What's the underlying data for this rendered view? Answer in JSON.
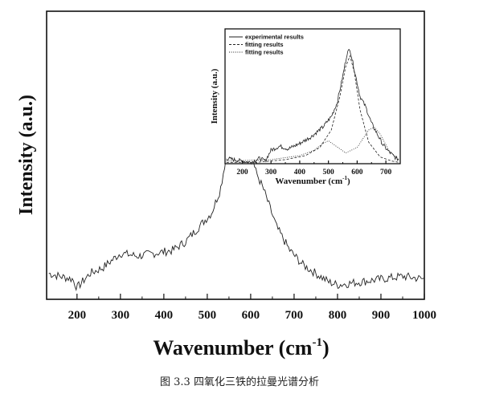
{
  "chart_data": [
    {
      "type": "line",
      "xlabel": "Wavenumber (cm",
      "xlabel_sup": "-1",
      "xlabel_close": ")",
      "ylabel": "Intensity (a.u.)",
      "xlim": [
        130,
        1000
      ],
      "ylim": [
        0,
        1
      ],
      "xticks": [
        200,
        300,
        400,
        500,
        600,
        700,
        800,
        900,
        1000
      ],
      "series": [
        {
          "x": [
            135,
            160,
            190,
            200,
            230,
            260,
            300,
            340,
            380,
            420,
            450,
            480,
            510,
            530,
            550,
            565,
            575,
            590,
            610,
            630,
            660,
            690,
            720,
            750,
            780,
            800,
            850,
            900,
            950,
            1000
          ],
          "y": [
            0.09,
            0.08,
            0.07,
            0.04,
            0.09,
            0.11,
            0.16,
            0.15,
            0.16,
            0.17,
            0.2,
            0.25,
            0.3,
            0.38,
            0.55,
            0.7,
            0.73,
            0.62,
            0.45,
            0.38,
            0.25,
            0.17,
            0.12,
            0.09,
            0.06,
            0.05,
            0.06,
            0.07,
            0.08,
            0.07
          ]
        }
      ]
    },
    {
      "type": "line",
      "xlabel": "Wavenumber (cm",
      "xlabel_sup": "-1",
      "xlabel_close": ")",
      "ylabel": "Intensity (a.u.)",
      "xlim": [
        140,
        750
      ],
      "ylim": [
        0,
        1
      ],
      "xticks": [
        200,
        300,
        400,
        500,
        600,
        700
      ],
      "series": [
        {
          "name": "experimental results",
          "style": "solid",
          "x": [
            145,
            170,
            200,
            230,
            260,
            280,
            300,
            330,
            360,
            400,
            440,
            480,
            510,
            530,
            550,
            565,
            575,
            590,
            610,
            630,
            650,
            670,
            690,
            710,
            730,
            745
          ],
          "y": [
            0.04,
            0.03,
            0.02,
            0.01,
            0.04,
            0.02,
            0.1,
            0.13,
            0.11,
            0.15,
            0.2,
            0.27,
            0.35,
            0.45,
            0.65,
            0.82,
            0.85,
            0.7,
            0.5,
            0.42,
            0.3,
            0.22,
            0.14,
            0.09,
            0.05,
            0.03
          ]
        },
        {
          "name": "fitting results",
          "style": "dashed",
          "x": [
            145,
            250,
            350,
            420,
            470,
            510,
            540,
            560,
            575,
            590,
            610,
            640,
            680,
            720,
            745
          ],
          "y": [
            0.01,
            0.01,
            0.03,
            0.06,
            0.12,
            0.25,
            0.5,
            0.72,
            0.8,
            0.68,
            0.4,
            0.16,
            0.05,
            0.02,
            0.01
          ]
        },
        {
          "name": "fitting results",
          "style": "dotted",
          "x": [
            145,
            300,
            400,
            450,
            480,
            500,
            520,
            560,
            600,
            640,
            660,
            680,
            710,
            745
          ],
          "y": [
            0.02,
            0.03,
            0.06,
            0.1,
            0.15,
            0.17,
            0.14,
            0.08,
            0.12,
            0.25,
            0.27,
            0.22,
            0.1,
            0.03
          ]
        }
      ]
    }
  ],
  "caption": "图 3.3  四氧化三铁的拉曼光谱分析"
}
